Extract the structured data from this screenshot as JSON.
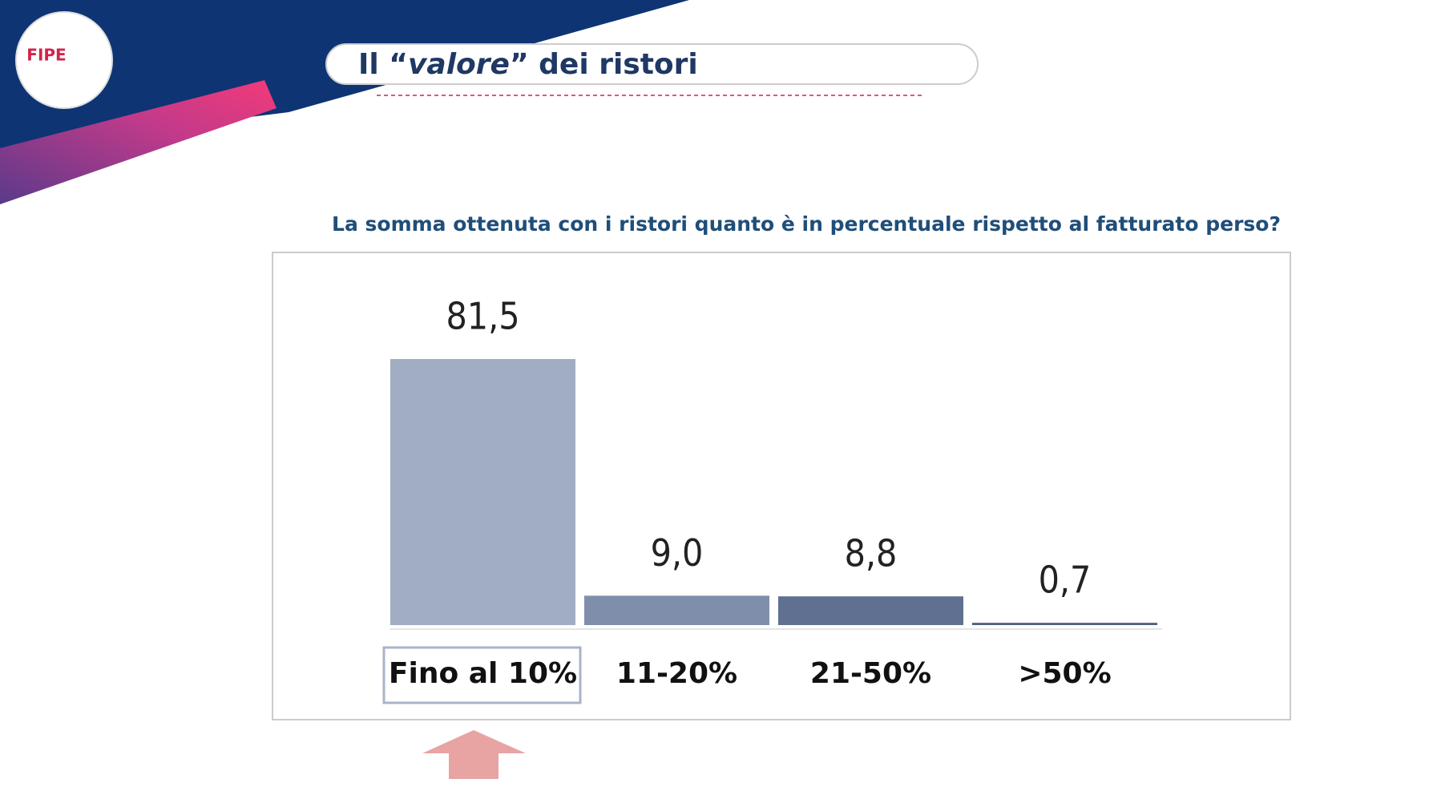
{
  "logo": {
    "text": "FIPE"
  },
  "header": {
    "title_parts": [
      "Il “",
      "valore",
      "” dei ristori"
    ]
  },
  "chart_data": {
    "type": "bar",
    "subtitle": "La somma ottenuta con i ristori quanto è in percentuale rispetto al fatturato perso?",
    "categories": [
      "Fino al 10%",
      "11-20%",
      "21-50%",
      ">50%"
    ],
    "values": [
      81.5,
      9.0,
      8.8,
      0.7
    ],
    "value_labels": [
      "81,5",
      "9,0",
      "8,8",
      "0,7"
    ],
    "colors": [
      "#a0adc3",
      "#7f8fab",
      "#5f7090",
      "#4e5f80"
    ]
  }
}
